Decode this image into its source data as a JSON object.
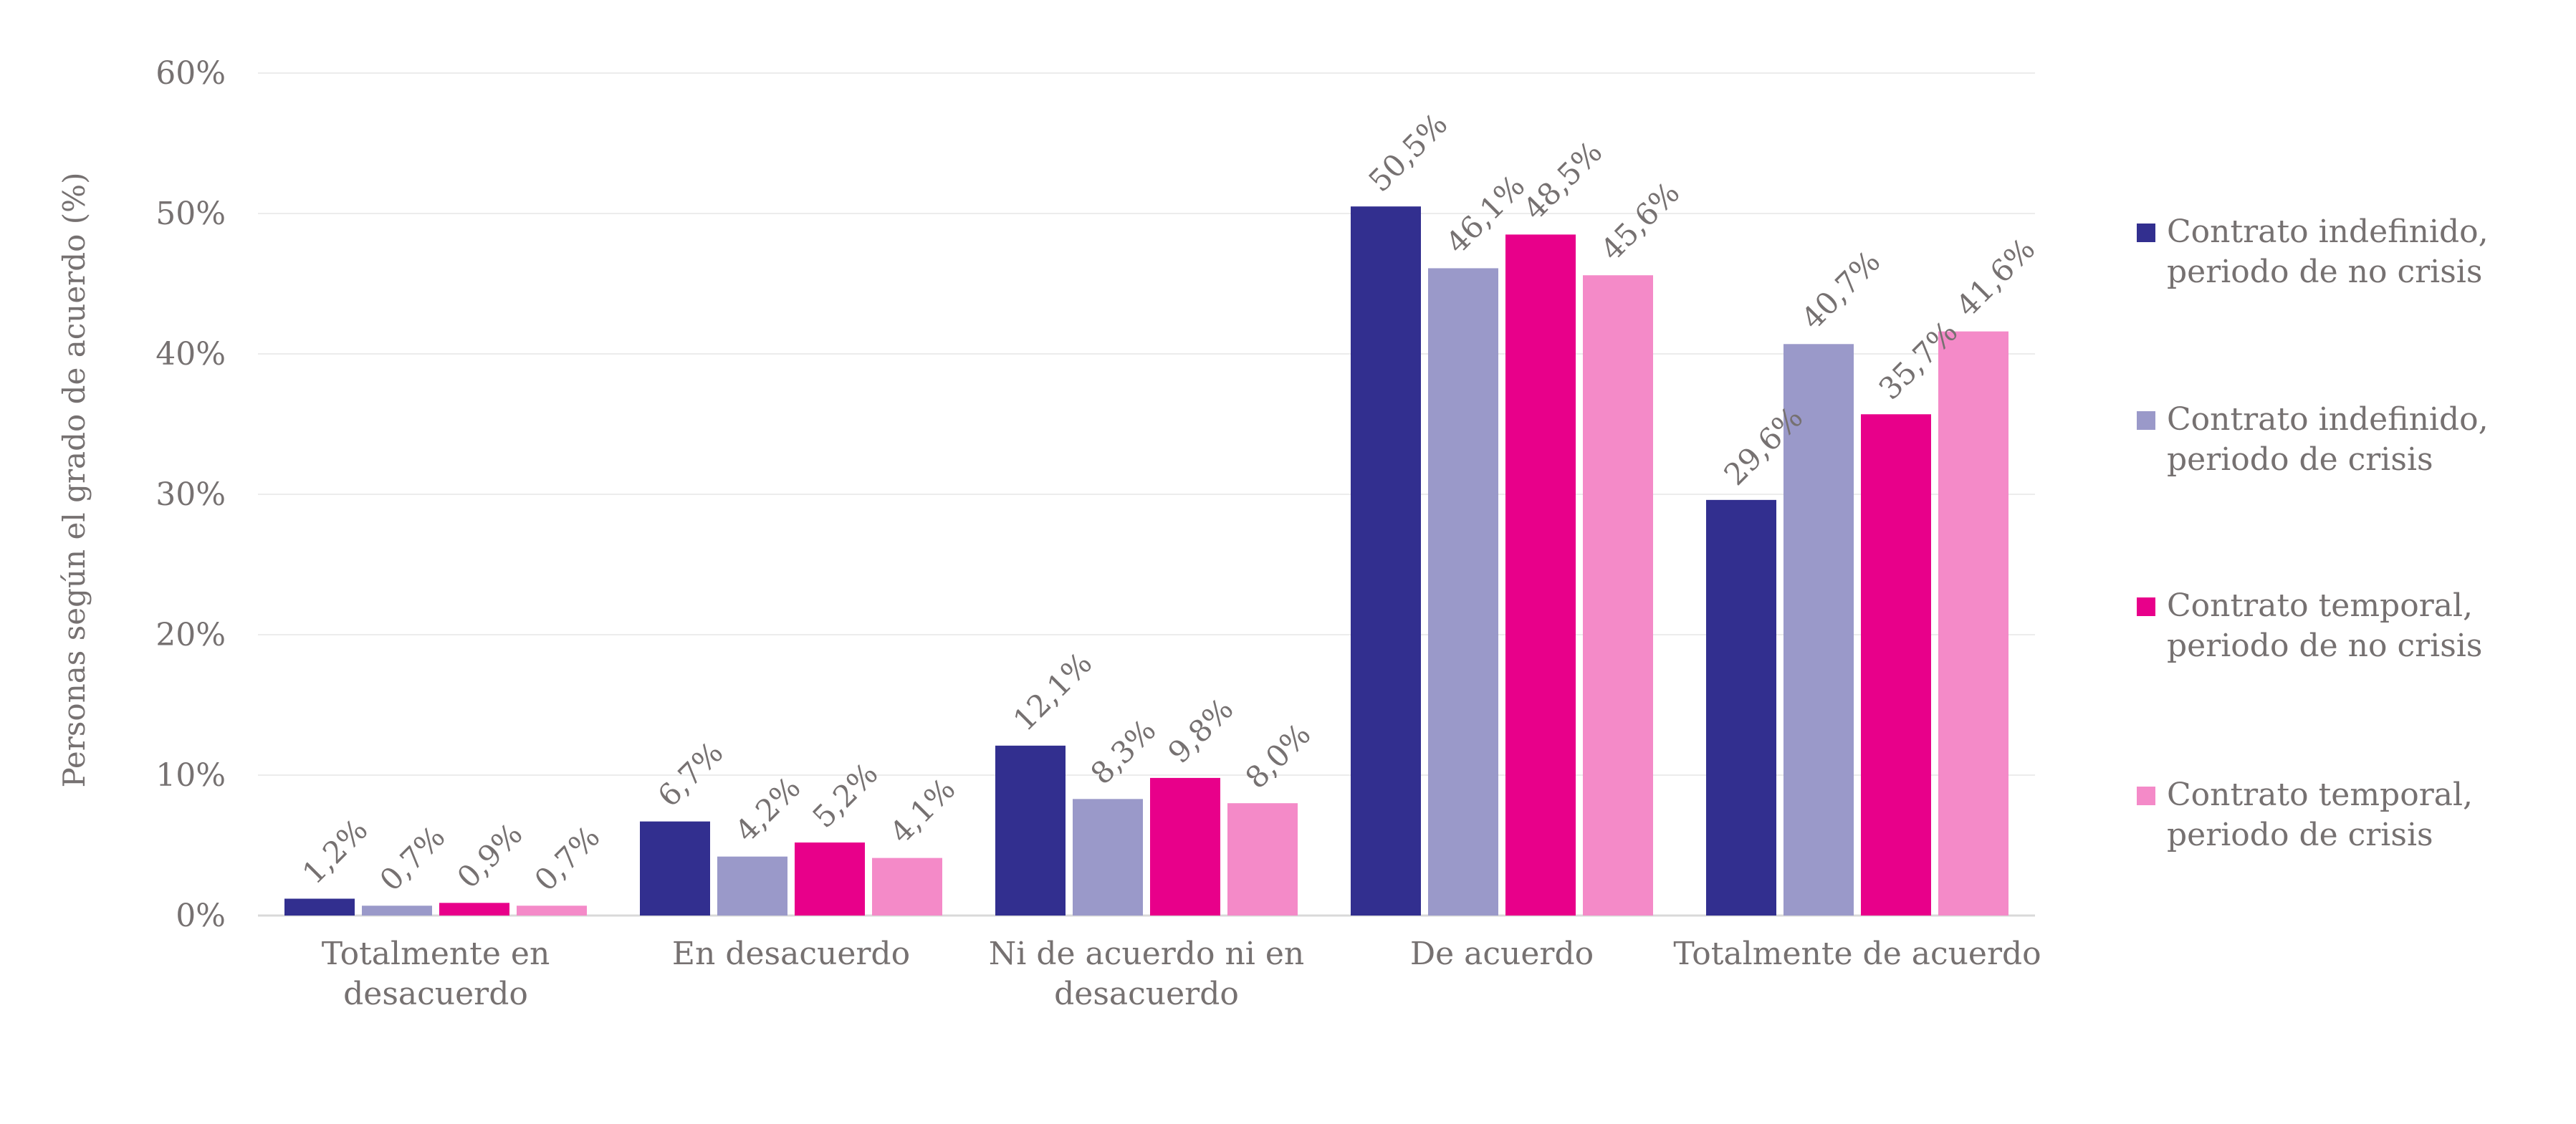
{
  "chart_data": {
    "type": "bar",
    "ylabel": "Personas según el grado de acuerdo (%)",
    "xlabel": "",
    "ylim": [
      0,
      60
    ],
    "yticks": [
      "0%",
      "10%",
      "20%",
      "30%",
      "40%",
      "50%",
      "60%"
    ],
    "ytick_values": [
      0,
      10,
      20,
      30,
      40,
      50,
      60
    ],
    "grid": true,
    "legend_position": "right",
    "categories": [
      [
        "Totalmente en",
        "desacuerdo"
      ],
      [
        "En desacuerdo"
      ],
      [
        "Ni de acuerdo ni en",
        "desacuerdo"
      ],
      [
        "De acuerdo"
      ],
      [
        "Totalmente de acuerdo"
      ]
    ],
    "series": [
      {
        "name": [
          "Contrato indefinido,",
          "periodo de no crisis"
        ],
        "color": "#322f8f",
        "values": [
          1.2,
          6.7,
          12.1,
          50.5,
          29.6
        ],
        "labels": [
          "1,2%",
          "6,7%",
          "12,1%",
          "50,5%",
          "29,6%"
        ]
      },
      {
        "name": [
          "Contrato indefinido,",
          "periodo de crisis"
        ],
        "color": "#9a99c9",
        "values": [
          0.7,
          4.2,
          8.3,
          46.1,
          40.7
        ],
        "labels": [
          "0,7%",
          "4,2%",
          "8,3%",
          "46,1%",
          "40,7%"
        ]
      },
      {
        "name": [
          "Contrato temporal,",
          "periodo de no crisis"
        ],
        "color": "#e8008a",
        "values": [
          0.9,
          5.2,
          9.8,
          48.5,
          35.7
        ],
        "labels": [
          "0,9%",
          "5,2%",
          "9,8%",
          "48,5%",
          "35,7%"
        ]
      },
      {
        "name": [
          "Contrato temporal,",
          "periodo de crisis"
        ],
        "color": "#f48ac8",
        "values": [
          0.7,
          4.1,
          8.0,
          45.6,
          41.6
        ],
        "labels": [
          "0,7%",
          "4,1%",
          "8,0%",
          "45,6%",
          "41,6%"
        ]
      }
    ]
  }
}
